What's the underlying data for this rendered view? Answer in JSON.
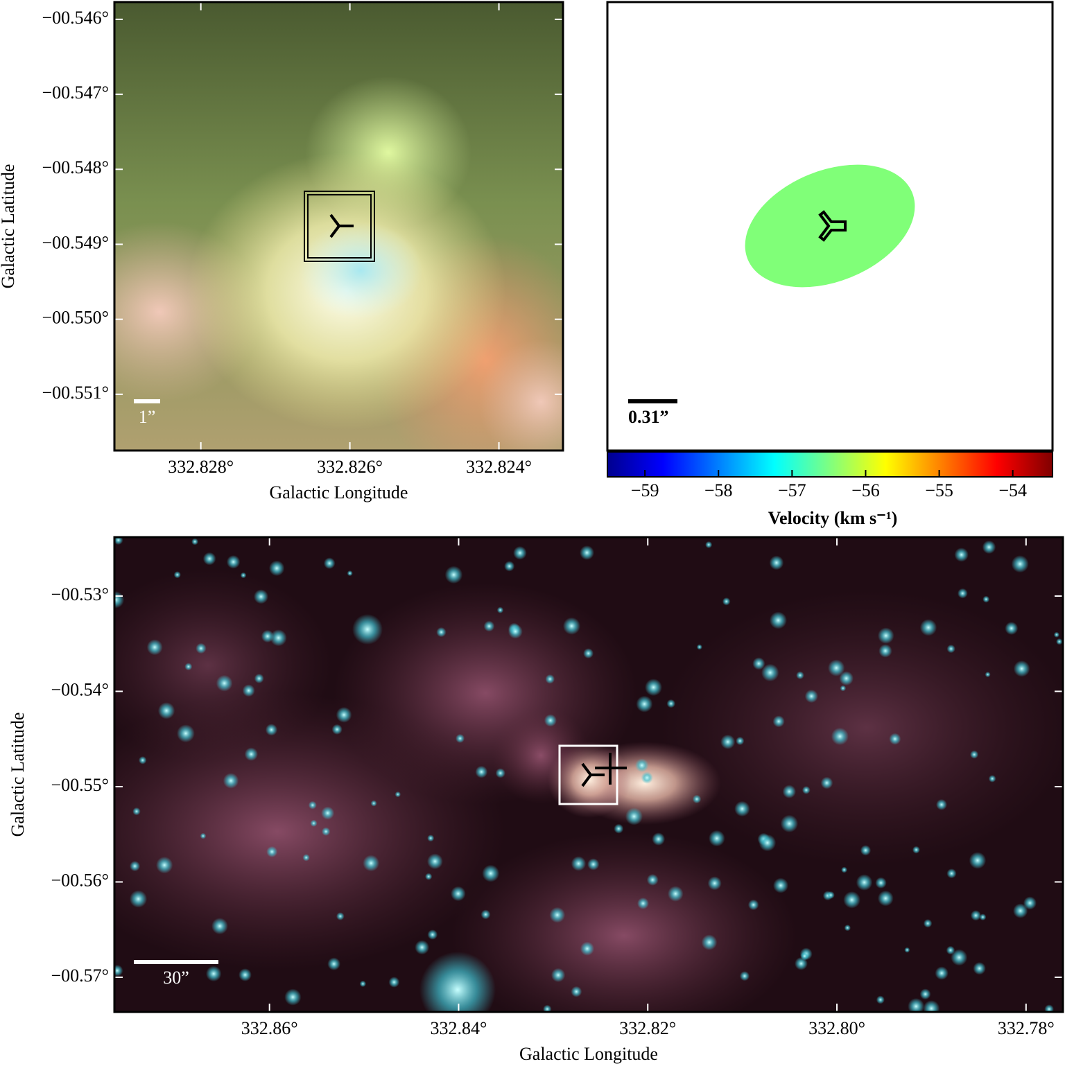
{
  "chart_data": [
    {
      "type": "image",
      "xlabel": "Galactic Longitude",
      "ylabel": "Galactic Latitude",
      "scalebar": "1”",
      "xlim": [
        332.82916,
        332.82314
      ],
      "xticks": [
        {
          "value": 332.828,
          "label": "332.828°"
        },
        {
          "value": 332.826,
          "label": "332.826°"
        },
        {
          "value": 332.824,
          "label": "332.824°"
        }
      ],
      "ylim": [
        -0.54577,
        -0.55175
      ],
      "yticks": [
        {
          "value": -0.546,
          "label": "−00.546°"
        },
        {
          "value": -0.547,
          "label": "−00.547°"
        },
        {
          "value": -0.548,
          "label": "−00.548°"
        },
        {
          "value": -0.549,
          "label": "−00.549°"
        },
        {
          "value": -0.55,
          "label": "−00.550°"
        },
        {
          "value": -0.551,
          "label": "−00.551°"
        }
      ]
    },
    {
      "type": "velocity-map",
      "scalebar": "0.31”",
      "colorbar_label": "Velocity (km s⁻¹)",
      "colorbar_lim": [
        -59.51,
        -53.46
      ],
      "colorbar_ticks": [
        {
          "value": -59,
          "label": "−59"
        },
        {
          "value": -58,
          "label": "−58"
        },
        {
          "value": -57,
          "label": "−57"
        },
        {
          "value": -56,
          "label": "−56"
        },
        {
          "value": -55,
          "label": "−55"
        },
        {
          "value": -54,
          "label": "−54"
        }
      ]
    },
    {
      "type": "image",
      "xlabel": "Galactic Longitude",
      "ylabel": "Galactic Latitude",
      "scalebar": "30”",
      "xlim": [
        332.8764,
        332.7761
      ],
      "xticks": [
        {
          "value": 332.86,
          "label": "332.86°"
        },
        {
          "value": 332.84,
          "label": "332.84°"
        },
        {
          "value": 332.82,
          "label": "332.82°"
        },
        {
          "value": 332.8,
          "label": "332.80°"
        },
        {
          "value": 332.78,
          "label": "332.78°"
        }
      ],
      "ylim": [
        -0.52382,
        -0.57364
      ],
      "yticks": [
        {
          "value": -0.53,
          "label": "−00.53°"
        },
        {
          "value": -0.54,
          "label": "−00.54°"
        },
        {
          "value": -0.55,
          "label": "−00.55°"
        },
        {
          "value": -0.56,
          "label": "−00.56°"
        },
        {
          "value": -0.57,
          "label": "−00.57°"
        }
      ]
    }
  ]
}
